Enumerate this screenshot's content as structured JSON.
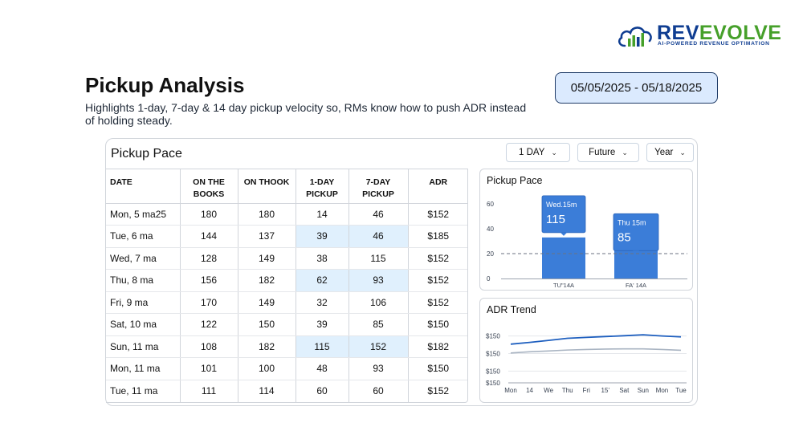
{
  "brand": {
    "name_part1": "REV",
    "name_part2": "EVOLVE",
    "tagline": "AI-POWERED REVENUE OPTIMATION",
    "colors": {
      "primary": "#0f3d91",
      "accent": "#46a02a"
    },
    "icon": "cloud-bar-chart-icon"
  },
  "header": {
    "title": "Pickup Analysis",
    "description": "Highlights 1-day, 7-day & 14 day pickup velocity so, RMs know how to push ADR instead of holding steady."
  },
  "date_range": "05/05/2025 - 05/18/2025",
  "card": {
    "title": "Pickup Pace",
    "filters": [
      {
        "label": "1 DAY",
        "icon": "chevron-down-icon"
      },
      {
        "label": "Future",
        "icon": "chevron-down-icon"
      },
      {
        "label": "Year",
        "icon": "chevron-down-icon"
      }
    ]
  },
  "table": {
    "columns": [
      "DATE",
      "ON THE\nBOOKS",
      "ON THOOK",
      "1-DAY\nPICKUP",
      "7-DAY\nPICKUP",
      "ADR"
    ],
    "rows": [
      {
        "cells": [
          "Mon, 5 ma25",
          "180",
          "180",
          "14",
          "46",
          "$152"
        ],
        "highlight": false
      },
      {
        "cells": [
          "Tue, 6 ma",
          "144",
          "137",
          "39",
          "46",
          "$185"
        ],
        "highlight": true
      },
      {
        "cells": [
          "Wed, 7 ma",
          "128",
          "149",
          "38",
          "115",
          "$152"
        ],
        "highlight": false
      },
      {
        "cells": [
          "Thu, 8 ma",
          "156",
          "182",
          "62",
          "93",
          "$152"
        ],
        "highlight": true
      },
      {
        "cells": [
          "Fri, 9 ma",
          "170",
          "149",
          "32",
          "106",
          "$152"
        ],
        "highlight": false
      },
      {
        "cells": [
          "Sat, 10 ma",
          "122",
          "150",
          "39",
          "85",
          "$150"
        ],
        "highlight": false
      },
      {
        "cells": [
          "Sun, 11 ma",
          "108",
          "182",
          "115",
          "152",
          "$182"
        ],
        "highlight": true
      },
      {
        "cells": [
          "Mon, 11 ma",
          "101",
          "100",
          "48",
          "93",
          "$150"
        ],
        "highlight": false
      },
      {
        "cells": [
          "Tue, 11 ma",
          "111",
          "114",
          "60",
          "60",
          "$152"
        ],
        "highlight": false
      }
    ],
    "highlight_color": "#e0f0fd"
  },
  "chart_data": [
    {
      "type": "bar",
      "title": "Pickup Pace",
      "categories": [
        "TU\"14A",
        "FA' 14A"
      ],
      "values": [
        33,
        25
      ],
      "ylim": [
        0,
        60
      ],
      "yticks": [
        0,
        20,
        40,
        60
      ],
      "reference_line": 20,
      "tooltips": [
        {
          "label": "Wed.15m",
          "value": "115"
        },
        {
          "label": "Thu 15m",
          "value": "85"
        }
      ],
      "color": "#3b7dd8",
      "grid": false
    },
    {
      "type": "line",
      "title": "ADR Trend",
      "x": [
        "Mon",
        "14",
        "We",
        "Thu",
        "Fri",
        "15'",
        "Sat",
        "Sun",
        "Mon",
        "Tue"
      ],
      "yticks": [
        "$150",
        "$150",
        "$150",
        "$150"
      ],
      "series": [
        {
          "values": [
            3.3,
            3.45,
            3.62,
            3.8,
            3.88,
            3.95,
            4.02,
            4.1,
            4.0,
            3.92
          ],
          "color": "#1e5fbf"
        },
        {
          "values": [
            2.55,
            2.65,
            2.72,
            2.8,
            2.85,
            2.88,
            2.9,
            2.9,
            2.85,
            2.78
          ],
          "color": "#a9b4c2"
        }
      ],
      "ylim": [
        0,
        5
      ],
      "grid": true
    }
  ]
}
